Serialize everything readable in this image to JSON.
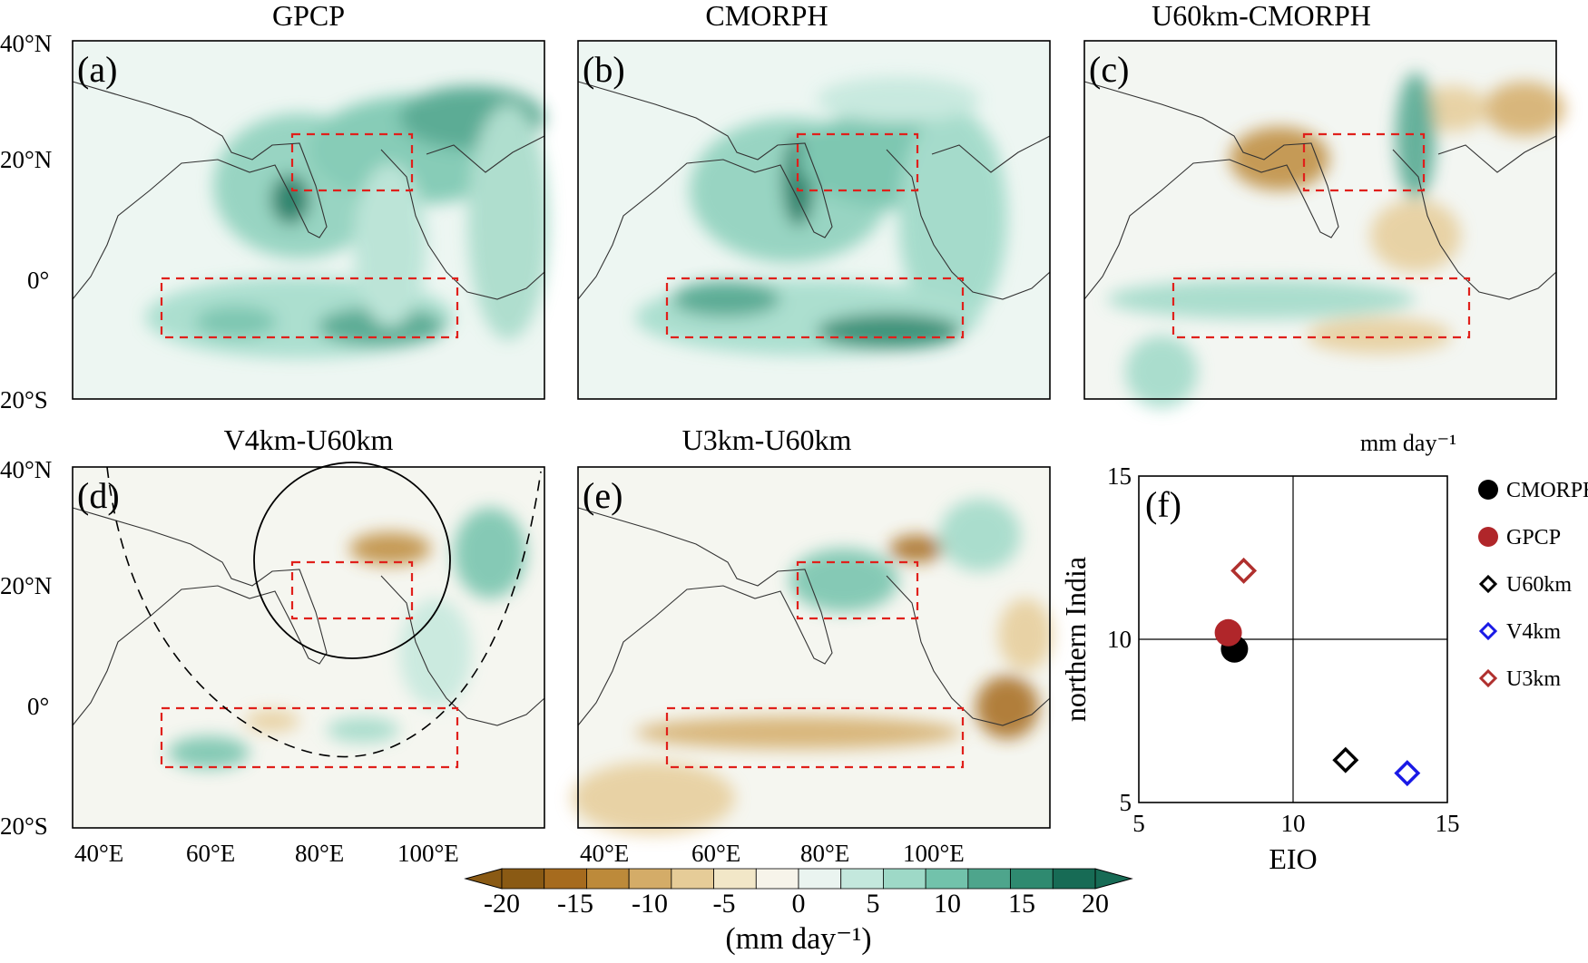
{
  "panel_titles": [
    "GPCP",
    "CMORPH",
    "U60km-CMORPH",
    "V4km-U60km",
    "U3km-U60km"
  ],
  "panel_letters": [
    "(a)",
    "(b)",
    "(c)",
    "(d)",
    "(e)",
    "(f)"
  ],
  "map_axes": {
    "lat_ticks": [
      "40°N",
      "20°N",
      "0°",
      "20°S"
    ],
    "lon_ticks": [
      "40°E",
      "60°E",
      "80°E",
      "100°E"
    ]
  },
  "colorbar": {
    "tick_labels": [
      "-20",
      "-15",
      "-10",
      "-5",
      "0",
      "5",
      "10",
      "15",
      "20"
    ],
    "unit_label": "(mm day⁻¹)",
    "colors": [
      "#8a5a14",
      "#a66b1e",
      "#bd8a3a",
      "#d4ac68",
      "#e6cc98",
      "#f2e7c8",
      "#f7f4ea",
      "#eaf4f0",
      "#c4e8dd",
      "#9ed9c7",
      "#72c2ab",
      "#4ea58c",
      "#2f8a70",
      "#176b55"
    ]
  },
  "colors": {
    "box": "#e0201b",
    "gpcp": "#b0262a",
    "u3km": "#b0302e",
    "v4km": "#1a1ae6",
    "u60km": "#000000",
    "cmorph": "#000000"
  },
  "chart_data": {
    "type": "scatter",
    "title": "",
    "unit_note": "mm day⁻¹",
    "xlabel": "EIO",
    "ylabel": "northern India",
    "xlim": [
      5,
      15
    ],
    "ylim": [
      5,
      15
    ],
    "xticks": [
      "5",
      "10",
      "15"
    ],
    "yticks": [
      "5",
      "10",
      "15"
    ],
    "ref_lines": {
      "x": 10,
      "y": 10
    },
    "series": [
      {
        "name": "CMORPH",
        "x": 8.1,
        "y": 9.7,
        "marker": "filled-circle",
        "color": "#000000"
      },
      {
        "name": "GPCP",
        "x": 7.9,
        "y": 10.2,
        "marker": "filled-circle",
        "color": "#b0262a"
      },
      {
        "name": "U60km",
        "x": 11.7,
        "y": 6.3,
        "marker": "open-diamond",
        "color": "#000000"
      },
      {
        "name": "V4km",
        "x": 13.7,
        "y": 5.9,
        "marker": "open-diamond",
        "color": "#1a1ae6"
      },
      {
        "name": "U3km",
        "x": 8.4,
        "y": 12.1,
        "marker": "open-diamond",
        "color": "#b0302e"
      }
    ]
  }
}
